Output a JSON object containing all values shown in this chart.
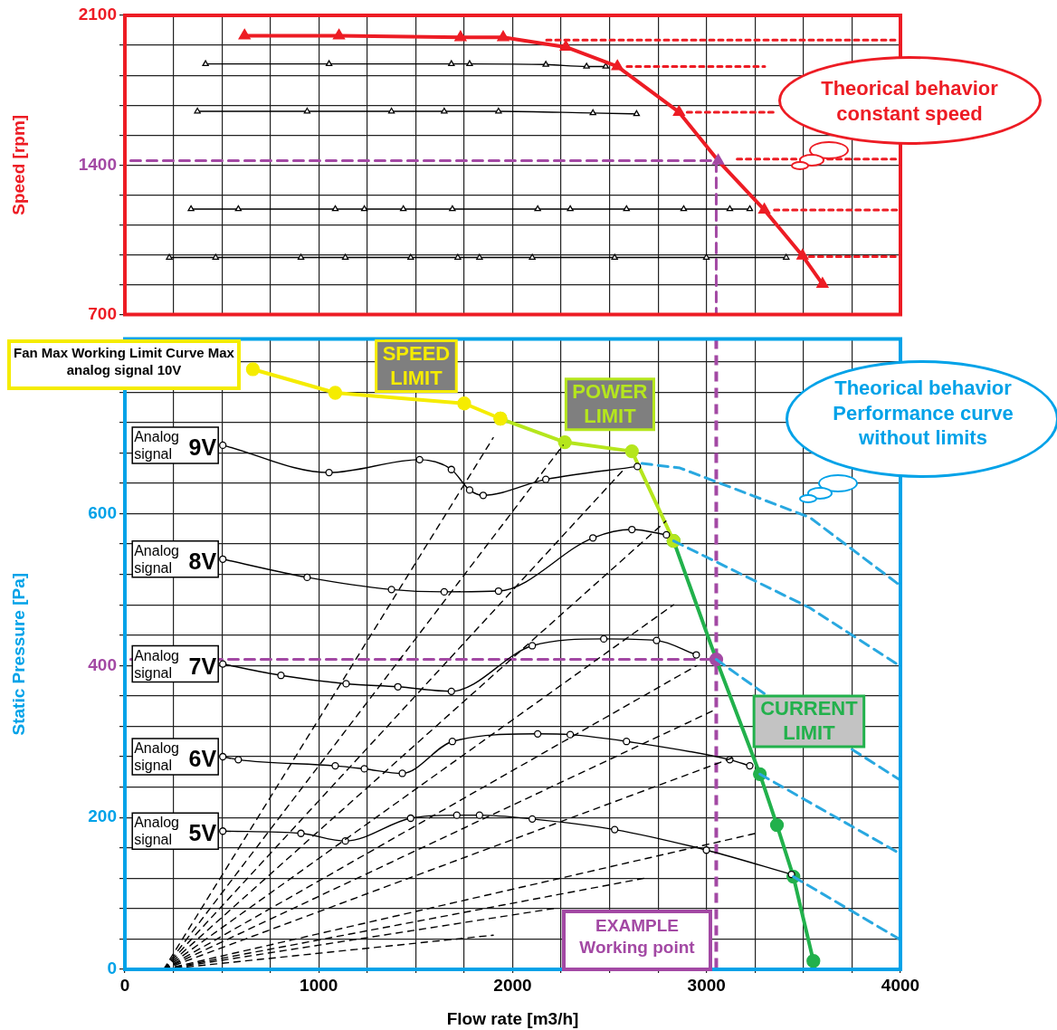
{
  "chart_data": [
    {
      "type": "line",
      "ylabel": "Speed [rpm]",
      "xlim": [
        0,
        4000
      ],
      "ylim": [
        700,
        2100
      ],
      "tick_labels": "y",
      "grid": true,
      "legend": false,
      "xticks": [
        {
          "value": 0,
          "label": null
        },
        {
          "value": 250,
          "label": null
        },
        {
          "value": 500,
          "label": null
        },
        {
          "value": 750,
          "label": null
        },
        {
          "value": 1000,
          "label": null
        },
        {
          "value": 1250,
          "label": null
        },
        {
          "value": 1500,
          "label": null
        },
        {
          "value": 1750,
          "label": null
        },
        {
          "value": 2000,
          "label": null
        },
        {
          "value": 2250,
          "label": null
        },
        {
          "value": 2500,
          "label": null
        },
        {
          "value": 2750,
          "label": null
        },
        {
          "value": 3000,
          "label": null
        },
        {
          "value": 3250,
          "label": null
        },
        {
          "value": 3500,
          "label": null
        },
        {
          "value": 3750,
          "label": null
        },
        {
          "value": 4000,
          "label": null
        }
      ],
      "yticks": [
        700,
        {
          "value": 840,
          "label": null
        },
        {
          "value": 980,
          "label": null
        },
        {
          "value": 1120,
          "label": null
        },
        {
          "value": 1260,
          "label": null
        },
        1400,
        {
          "value": 1540,
          "label": null
        },
        {
          "value": 1680,
          "label": null
        },
        {
          "value": 1820,
          "label": null
        },
        {
          "value": 1960,
          "label": null
        },
        2100
      ],
      "annotations": [
        "Theorical behavior constant speed"
      ],
      "series": [
        {
          "color": "#ed1c24",
          "marker": "triangle",
          "x": [
            617,
            1104,
            1731,
            1951,
            2274,
            2540,
            2858,
            3060,
            3298,
            3495,
            3598
          ],
          "values": [
            2005,
            2005,
            1997,
            1997,
            1952,
            1861,
            1647,
            1420,
            1190,
            975,
            843
          ],
          "colors": [
            "#ed1c24",
            "#ed1c24",
            "#ed1c24",
            "#ed1c24",
            "#ed1c24",
            "#ed1c24",
            "#ed1c24",
            "#a349a4",
            "#ed1c24",
            "#ed1c24",
            "#ed1c24"
          ]
        },
        {
          "color": "#000000",
          "marker": "triangle",
          "x": [
            416,
            1053,
            1684,
            1778,
            2171,
            2381,
            2480
          ],
          "values": [
            1873,
            1873,
            1873,
            1873,
            1870,
            1861,
            1861
          ]
        },
        {
          "color": "#000000",
          "marker": "triangle",
          "x": [
            374,
            940,
            1375,
            1647,
            1927,
            2414,
            2639
          ],
          "values": [
            1651,
            1651,
            1651,
            1651,
            1651,
            1643,
            1639
          ]
        },
        {
          "color": "#000000",
          "marker": "triangle",
          "x": [
            341,
            585,
            1085,
            1235,
            1436,
            1689,
            2129,
            2297,
            2587,
            2882,
            3120,
            3223
          ],
          "values": [
            1194,
            1194,
            1194,
            1194,
            1194,
            1194,
            1194,
            1194,
            1194,
            1194,
            1194,
            1194
          ]
        },
        {
          "color": "#000000",
          "marker": "triangle",
          "x": [
            229,
            468,
            908,
            1137,
            1474,
            1717,
            1829,
            2101,
            2526,
            2999,
            3411
          ],
          "values": [
            967,
            967,
            967,
            967,
            967,
            967,
            967,
            967,
            967,
            967,
            967
          ]
        },
        {
          "color": "#ed1c24",
          "marker": "none",
          "line_style": "dotted",
          "x": [
            2175,
            3990
          ],
          "values": [
            1985,
            1985
          ]
        },
        {
          "color": "#ed1c24",
          "marker": "none",
          "line_style": "dotted",
          "x": [
            2590,
            3300
          ],
          "values": [
            1861,
            1861
          ]
        },
        {
          "color": "#ed1c24",
          "marker": "none",
          "line_style": "dotted",
          "x": [
            2900,
            3345
          ],
          "values": [
            1647,
            1647
          ]
        },
        {
          "color": "#ed1c24",
          "marker": "none",
          "line_style": "dotted",
          "x": [
            3158,
            3990
          ],
          "values": [
            1428,
            1428
          ]
        },
        {
          "color": "#ed1c24",
          "marker": "none",
          "line_style": "dotted",
          "x": [
            3350,
            3990
          ],
          "values": [
            1190,
            1190
          ]
        },
        {
          "color": "#ed1c24",
          "marker": "none",
          "line_style": "dotted",
          "x": [
            3530,
            3990
          ],
          "values": [
            971,
            971
          ]
        },
        {
          "color": "#a349a4",
          "marker": "none",
          "line_style": "dashed",
          "x": [
            30,
            3050,
            3050
          ],
          "values": [
            1420,
            1420,
            700
          ]
        }
      ]
    },
    {
      "type": "line",
      "xlabel": "Flow rate [m3/h]",
      "ylabel": "Static Pressure [Pa]",
      "xlim": [
        0,
        4000
      ],
      "ylim": [
        0,
        830
      ],
      "grid": true,
      "legend": false,
      "xticks": [
        0,
        {
          "value": 250,
          "label": null
        },
        {
          "value": 500,
          "label": null
        },
        {
          "value": 750,
          "label": null
        },
        1000,
        {
          "value": 1250,
          "label": null
        },
        {
          "value": 1500,
          "label": null
        },
        {
          "value": 1750,
          "label": null
        },
        2000,
        {
          "value": 2250,
          "label": null
        },
        {
          "value": 2500,
          "label": null
        },
        {
          "value": 2750,
          "label": null
        },
        3000,
        {
          "value": 3250,
          "label": null
        },
        {
          "value": 3500,
          "label": null
        },
        {
          "value": 3750,
          "label": null
        },
        4000
      ],
      "yticks": [
        0,
        {
          "value": 40,
          "label": null
        },
        {
          "value": 80,
          "label": null
        },
        {
          "value": 120,
          "label": null
        },
        {
          "value": 160,
          "label": null
        },
        200,
        {
          "value": 240,
          "label": null
        },
        {
          "value": 280,
          "label": null
        },
        {
          "value": 320,
          "label": null
        },
        {
          "value": 360,
          "label": null
        },
        400,
        {
          "value": 440,
          "label": null
        },
        {
          "value": 480,
          "label": null
        },
        {
          "value": 520,
          "label": null
        },
        {
          "value": 560,
          "label": null
        },
        600,
        {
          "value": 640,
          "label": null
        },
        {
          "value": 680,
          "label": null
        },
        {
          "value": 720,
          "label": null
        },
        {
          "value": 760,
          "label": null
        },
        {
          "value": 800,
          "label": null
        }
      ],
      "annotations": [
        "Fan Max Working Limit Curve Max analog signal 10V",
        "Theorical behavior Performance curve without limits",
        "EXAMPLE Working point"
      ],
      "ref_lines": [
        {
          "axis": "x",
          "value": 3050,
          "color": "#a349a4",
          "line_style": "dashed"
        }
      ],
      "series": [
        {
          "color": "#000000",
          "marker": "none",
          "line_style": "dashed",
          "x": [
            200,
            1900
          ],
          "values": [
            0,
            700
          ]
        },
        {
          "color": "#000000",
          "marker": "none",
          "line_style": "dashed",
          "x": [
            200,
            2260
          ],
          "values": [
            0,
            690
          ]
        },
        {
          "color": "#000000",
          "marker": "none",
          "line_style": "dashed",
          "x": [
            200,
            2580
          ],
          "values": [
            0,
            660
          ]
        },
        {
          "color": "#000000",
          "marker": "none",
          "line_style": "dashed",
          "x": [
            200,
            2790
          ],
          "values": [
            0,
            590
          ]
        },
        {
          "color": "#000000",
          "marker": "none",
          "line_style": "dashed",
          "x": [
            200,
            2830
          ],
          "values": [
            0,
            480
          ]
        },
        {
          "color": "#000000",
          "marker": "none",
          "line_style": "dashed",
          "x": [
            200,
            2950
          ],
          "values": [
            0,
            400
          ]
        },
        {
          "color": "#000000",
          "marker": "none",
          "line_style": "dashed",
          "x": [
            200,
            3030
          ],
          "values": [
            0,
            340
          ]
        },
        {
          "color": "#000000",
          "marker": "none",
          "line_style": "dashed",
          "x": [
            200,
            3150
          ],
          "values": [
            0,
            280
          ]
        },
        {
          "color": "#000000",
          "marker": "none",
          "line_style": "dashed",
          "x": [
            200,
            3270
          ],
          "values": [
            0,
            180
          ]
        },
        {
          "color": "#000000",
          "marker": "none",
          "line_style": "dashed",
          "x": [
            200,
            2680
          ],
          "values": [
            0,
            120
          ]
        },
        {
          "color": "#000000",
          "marker": "none",
          "line_style": "dashed",
          "x": [
            200,
            2210
          ],
          "values": [
            0,
            80
          ]
        },
        {
          "color": "#000000",
          "marker": "none",
          "line_style": "dashed",
          "x": [
            200,
            1900
          ],
          "values": [
            0,
            45
          ]
        },
        {
          "color": "#29a8e0",
          "marker": "none",
          "line_style": "dashed",
          "x": [
            2667,
            2863,
            3532,
            4000
          ],
          "values": [
            666,
            660,
            595,
            505
          ]
        },
        {
          "color": "#29a8e0",
          "marker": "none",
          "line_style": "dashed",
          "x": [
            2830,
            3532,
            4000
          ],
          "values": [
            564,
            476,
            399
          ]
        },
        {
          "color": "#29a8e0",
          "marker": "none",
          "line_style": "dashed",
          "x": [
            3050,
            3298,
            4000
          ],
          "values": [
            408,
            363,
            249
          ]
        },
        {
          "color": "#29a8e0",
          "marker": "none",
          "line_style": "dashed",
          "x": [
            3275,
            4000
          ],
          "values": [
            257,
            152
          ]
        },
        {
          "color": "#29a8e0",
          "marker": "none",
          "line_style": "dashed",
          "x": [
            3448,
            4000
          ],
          "values": [
            122,
            39
          ]
        },
        {
          "name": "Analog signal 9V",
          "color": "#000000",
          "marker": "circle",
          "x": [
            505,
            1053,
            1520,
            1684,
            1778,
            1848,
            2171,
            2643
          ],
          "values": [
            690,
            654,
            671,
            658,
            631,
            624,
            645,
            662
          ]
        },
        {
          "name": "Analog signal 8V",
          "color": "#000000",
          "marker": "circle",
          "x": [
            505,
            940,
            1375,
            1647,
            1927,
            2414,
            2615,
            2793
          ],
          "values": [
            540,
            516,
            500,
            497,
            498,
            568,
            579,
            572
          ]
        },
        {
          "name": "Analog signal 7V",
          "color": "#000000",
          "marker": "circle",
          "x": [
            505,
            805,
            1141,
            1408,
            1684,
            2101,
            2470,
            2742,
            2947
          ],
          "values": [
            402,
            387,
            376,
            372,
            366,
            426,
            435,
            433,
            414
          ]
        },
        {
          "name": "Analog signal 6V",
          "color": "#000000",
          "marker": "circle",
          "x": [
            505,
            585,
            1085,
            1235,
            1431,
            1689,
            2129,
            2297,
            2587,
            3120,
            3223
          ],
          "values": [
            280,
            276,
            268,
            264,
            258,
            300,
            310,
            309,
            300,
            276,
            268
          ]
        },
        {
          "name": "Analog signal 5V",
          "color": "#000000",
          "marker": "circle",
          "x": [
            505,
            908,
            1137,
            1474,
            1712,
            1829,
            2101,
            2526,
            2999,
            3438
          ],
          "values": [
            182,
            179,
            169,
            199,
            203,
            203,
            198,
            184,
            157,
            125
          ]
        },
        {
          "color": "#a349a4",
          "marker": "none",
          "line_style": "dashed",
          "x": [
            30,
            3020
          ],
          "values": [
            408,
            408
          ]
        },
        {
          "name": "SPEED LIMIT",
          "color": "#f5ec00",
          "marker": "circle",
          "x": [
            660,
            1085,
            1750,
            1937
          ],
          "values": [
            790,
            759,
            745,
            725
          ]
        },
        {
          "name": "POWER LIMIT",
          "color": "#b5e61d",
          "marker": "circle",
          "x": [
            1937,
            2269,
            2615,
            2830
          ],
          "values": [
            725,
            694,
            682,
            564
          ]
        },
        {
          "name": "CURRENT LIMIT",
          "color": "#22b14c",
          "marker": "circle",
          "x": [
            2830,
            3050,
            3275,
            3363,
            3448,
            3551
          ],
          "values": [
            564,
            408,
            257,
            190,
            122,
            11
          ],
          "colors": [
            "#22b14c",
            "#a349a4",
            "#22b14c",
            "#22b14c",
            "#22b14c",
            "#22b14c"
          ]
        }
      ]
    }
  ]
}
